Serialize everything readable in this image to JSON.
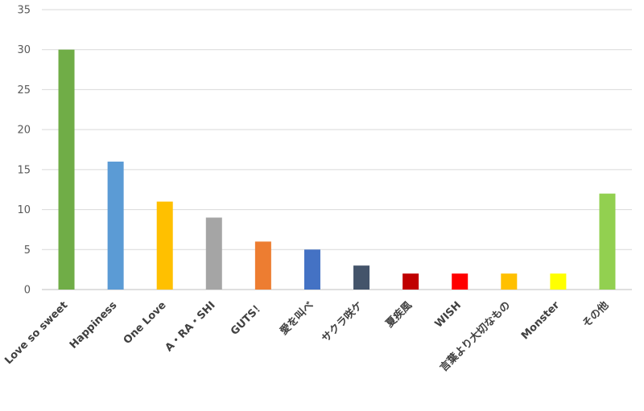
{
  "chart_data": {
    "type": "bar",
    "title": "",
    "xlabel": "",
    "ylabel": "",
    "ylim": [
      0,
      35
    ],
    "yticks": [
      0,
      5,
      10,
      15,
      20,
      25,
      30,
      35
    ],
    "grid": true,
    "legend": "none",
    "categories": [
      "Love so sweet",
      "Happiness",
      "One Love",
      "A・RA・SHI",
      "GUTS！",
      "愛を叫べ",
      "サクラ咲ケ",
      "夏疾風",
      "WISH",
      "言葉より大切なもの",
      "Monster",
      "その他"
    ],
    "values": [
      30,
      16,
      11,
      9,
      6,
      5,
      3,
      2,
      2,
      2,
      2,
      12
    ],
    "colors": [
      "#70ad47",
      "#5b9bd5",
      "#ffc000",
      "#a5a5a5",
      "#ed7d31",
      "#4472c4",
      "#44546a",
      "#c00000",
      "#ff0000",
      "#ffc000",
      "#ffff00",
      "#92d050"
    ]
  }
}
